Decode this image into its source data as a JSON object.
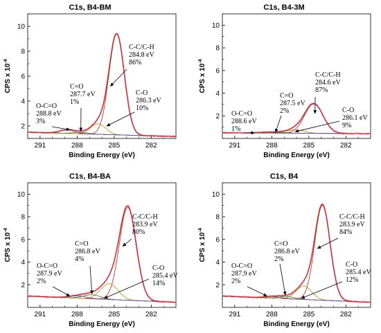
{
  "chart_data": [
    {
      "type": "line",
      "title": "C1s, B4-BM",
      "xlabel": "Binding Energy (eV)",
      "ylabel": "CPS x 10",
      "ylabel_exp": "-4",
      "xlim": [
        292,
        280
      ],
      "ylim": [
        1,
        11
      ],
      "xticks": [
        291,
        288,
        285,
        282
      ],
      "yticks": [
        2,
        4,
        6,
        8,
        10
      ],
      "x_reversed": true,
      "background": [
        1.5,
        1.15
      ],
      "peaks": [
        {
          "name": "C-C/C-H",
          "energy": "284.8 eV",
          "percent": "86%",
          "center": 284.8,
          "height": 8.1,
          "sigma": 0.62
        },
        {
          "name": "C-O",
          "energy": "286.3 eV",
          "percent": "10%",
          "center": 286.3,
          "height": 0.85,
          "sigma": 0.6
        },
        {
          "name": "C=O",
          "energy": "287.7 eV",
          "percent": "1%",
          "center": 287.7,
          "height": 0.12,
          "sigma": 0.6
        },
        {
          "name": "O-C=O",
          "energy": "288.8 eV",
          "percent": "3%",
          "center": 288.8,
          "height": 0.28,
          "sigma": 0.6
        }
      ]
    },
    {
      "type": "line",
      "title": "C1s, B4-3M",
      "xlabel": "Binding Energy (eV)",
      "ylabel": "CPS x 10",
      "ylabel_exp": "-4",
      "xlim": [
        292,
        280
      ],
      "ylim": [
        0,
        11
      ],
      "xticks": [
        291,
        288,
        285,
        282
      ],
      "yticks": [
        2,
        4,
        6,
        8,
        10
      ],
      "x_reversed": true,
      "background": [
        0.5,
        0.42
      ],
      "peaks": [
        {
          "name": "C-C/C-H",
          "energy": "284.6 eV",
          "percent": "87%",
          "center": 284.6,
          "height": 2.6,
          "sigma": 0.75
        },
        {
          "name": "C-O",
          "energy": "286.1 eV",
          "percent": "9%",
          "center": 286.1,
          "height": 0.3,
          "sigma": 0.7
        },
        {
          "name": "C=O",
          "energy": "287.5 eV",
          "percent": "2%",
          "center": 287.5,
          "height": 0.07,
          "sigma": 0.7
        },
        {
          "name": "O-C=O",
          "energy": "288.6 eV",
          "percent": "1%",
          "center": 288.6,
          "height": 0.05,
          "sigma": 0.7
        }
      ]
    },
    {
      "type": "line",
      "title": "C1s, B4-BA",
      "xlabel": "Binding Energy (eV)",
      "ylabel": "CPS x 10",
      "ylabel_exp": "-4",
      "xlim": [
        292,
        280
      ],
      "ylim": [
        0,
        11
      ],
      "xticks": [
        291,
        288,
        285,
        282
      ],
      "yticks": [
        2,
        4,
        6,
        8,
        10
      ],
      "x_reversed": true,
      "background": [
        1.0,
        0.45
      ],
      "peaks": [
        {
          "name": "C-C/C-H",
          "energy": "283.9 eV",
          "percent": "80%",
          "center": 283.9,
          "height": 8.2,
          "sigma": 0.68
        },
        {
          "name": "C-O",
          "energy": "285.4 eV",
          "percent": "14%",
          "center": 285.4,
          "height": 1.4,
          "sigma": 0.7
        },
        {
          "name": "C=O",
          "energy": "286.8 eV",
          "percent": "4%",
          "center": 286.8,
          "height": 0.35,
          "sigma": 0.7
        },
        {
          "name": "O-C=O",
          "energy": "287.9 eV",
          "percent": "2%",
          "center": 287.9,
          "height": 0.2,
          "sigma": 0.7
        }
      ]
    },
    {
      "type": "line",
      "title": "C1s, B4",
      "xlabel": "Binding Energy (eV)",
      "ylabel": "CPS x 10",
      "ylabel_exp": "-4",
      "xlim": [
        292,
        280
      ],
      "ylim": [
        0,
        11
      ],
      "xticks": [
        291,
        288,
        285,
        282
      ],
      "yticks": [
        2,
        4,
        6,
        8,
        10
      ],
      "x_reversed": true,
      "background": [
        1.0,
        0.45
      ],
      "peaks": [
        {
          "name": "C-C/C-H",
          "energy": "283.9 eV",
          "percent": "84%",
          "center": 283.9,
          "height": 8.4,
          "sigma": 0.62
        },
        {
          "name": "C-O",
          "energy": "285.4 eV",
          "percent": "12%",
          "center": 285.4,
          "height": 1.2,
          "sigma": 0.62
        },
        {
          "name": "C=O",
          "energy": "286.8 eV",
          "percent": "2%",
          "center": 286.8,
          "height": 0.2,
          "sigma": 0.62
        },
        {
          "name": "O-C=O",
          "energy": "287.9 eV",
          "percent": "2%",
          "center": 287.9,
          "height": 0.15,
          "sigma": 0.62
        }
      ]
    }
  ]
}
